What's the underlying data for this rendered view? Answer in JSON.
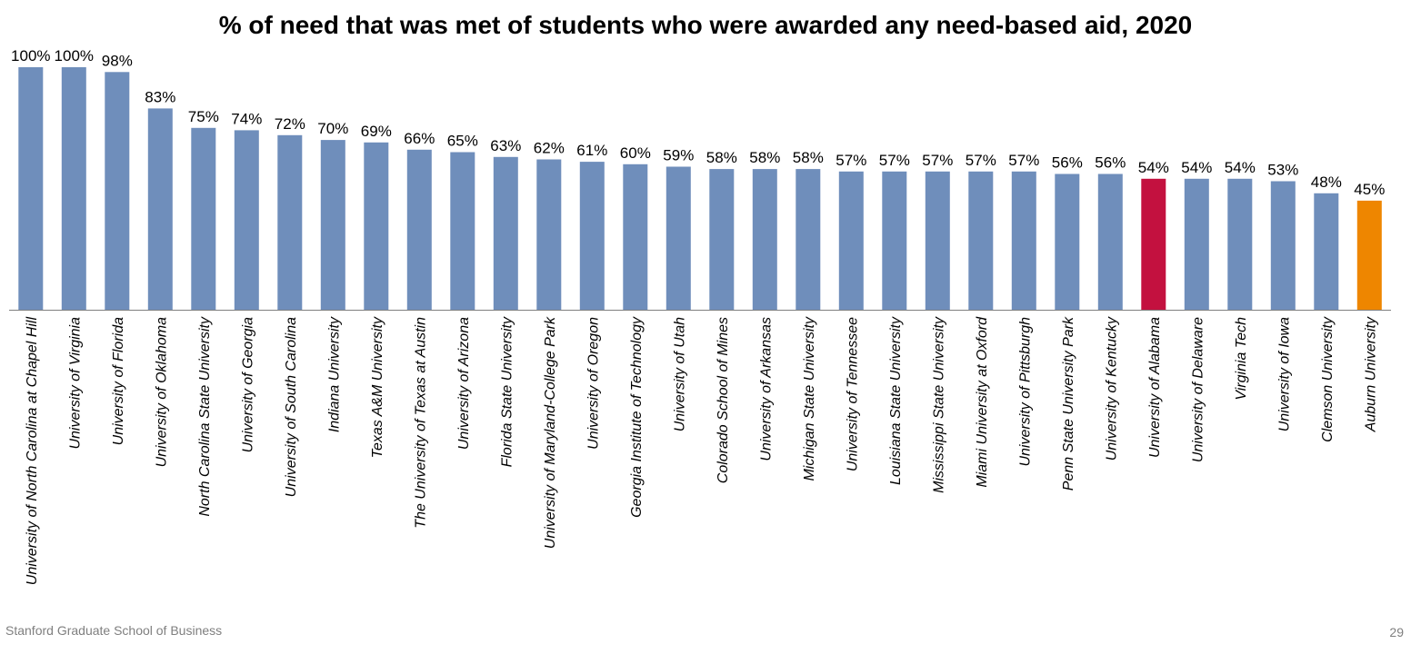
{
  "footer": {
    "left": "Stanford Graduate School of Business",
    "page_number": "29"
  },
  "colors": {
    "default_bar": "#6F8EBB",
    "alabama_bar": "#C3113F",
    "auburn_bar": "#EE8600",
    "axis": "#7f7f7f"
  },
  "chart_data": {
    "type": "bar",
    "title": "% of need that was met of students who were awarded any need-based aid, 2020",
    "xlabel": "",
    "ylabel": "",
    "ylim": [
      0,
      100
    ],
    "grid": false,
    "categories": [
      "University of North Carolina at Chapel Hill",
      "University of Virginia",
      "University of Florida",
      "University of Oklahoma",
      "North Carolina State University",
      "University of Georgia",
      "University of South Carolina",
      "Indiana University",
      "Texas A&M University",
      "The University of Texas at Austin",
      "University of Arizona",
      "Florida State University",
      "University of Maryland-College Park",
      "University of Oregon",
      "Georgia Institute of Technology",
      "University of Utah",
      "Colorado School of Mines",
      "University of Arkansas",
      "Michigan State University",
      "University of Tennessee",
      "Louisiana State University",
      "Mississippi State University",
      "Miami University at Oxford",
      "University of Pittsburgh",
      "Penn State University Park",
      "University of Kentucky",
      "University of Alabama",
      "University of Delaware",
      "Virginia Tech",
      "University of Iowa",
      "Clemson University",
      "Auburn University"
    ],
    "values": [
      100,
      100,
      98,
      83,
      75,
      74,
      72,
      70,
      69,
      66,
      65,
      63,
      62,
      61,
      60,
      59,
      58,
      58,
      58,
      57,
      57,
      57,
      57,
      57,
      56,
      56,
      54,
      54,
      54,
      53,
      48,
      45
    ],
    "value_labels": [
      "100%",
      "100%",
      "98%",
      "83%",
      "75%",
      "74%",
      "72%",
      "70%",
      "69%",
      "66%",
      "65%",
      "63%",
      "62%",
      "61%",
      "60%",
      "59%",
      "58%",
      "58%",
      "58%",
      "57%",
      "57%",
      "57%",
      "57%",
      "57%",
      "56%",
      "56%",
      "54%",
      "54%",
      "54%",
      "53%",
      "48%",
      "45%"
    ],
    "highlight": {
      "University of Alabama": "#C3113F",
      "Auburn University": "#EE8600"
    }
  }
}
